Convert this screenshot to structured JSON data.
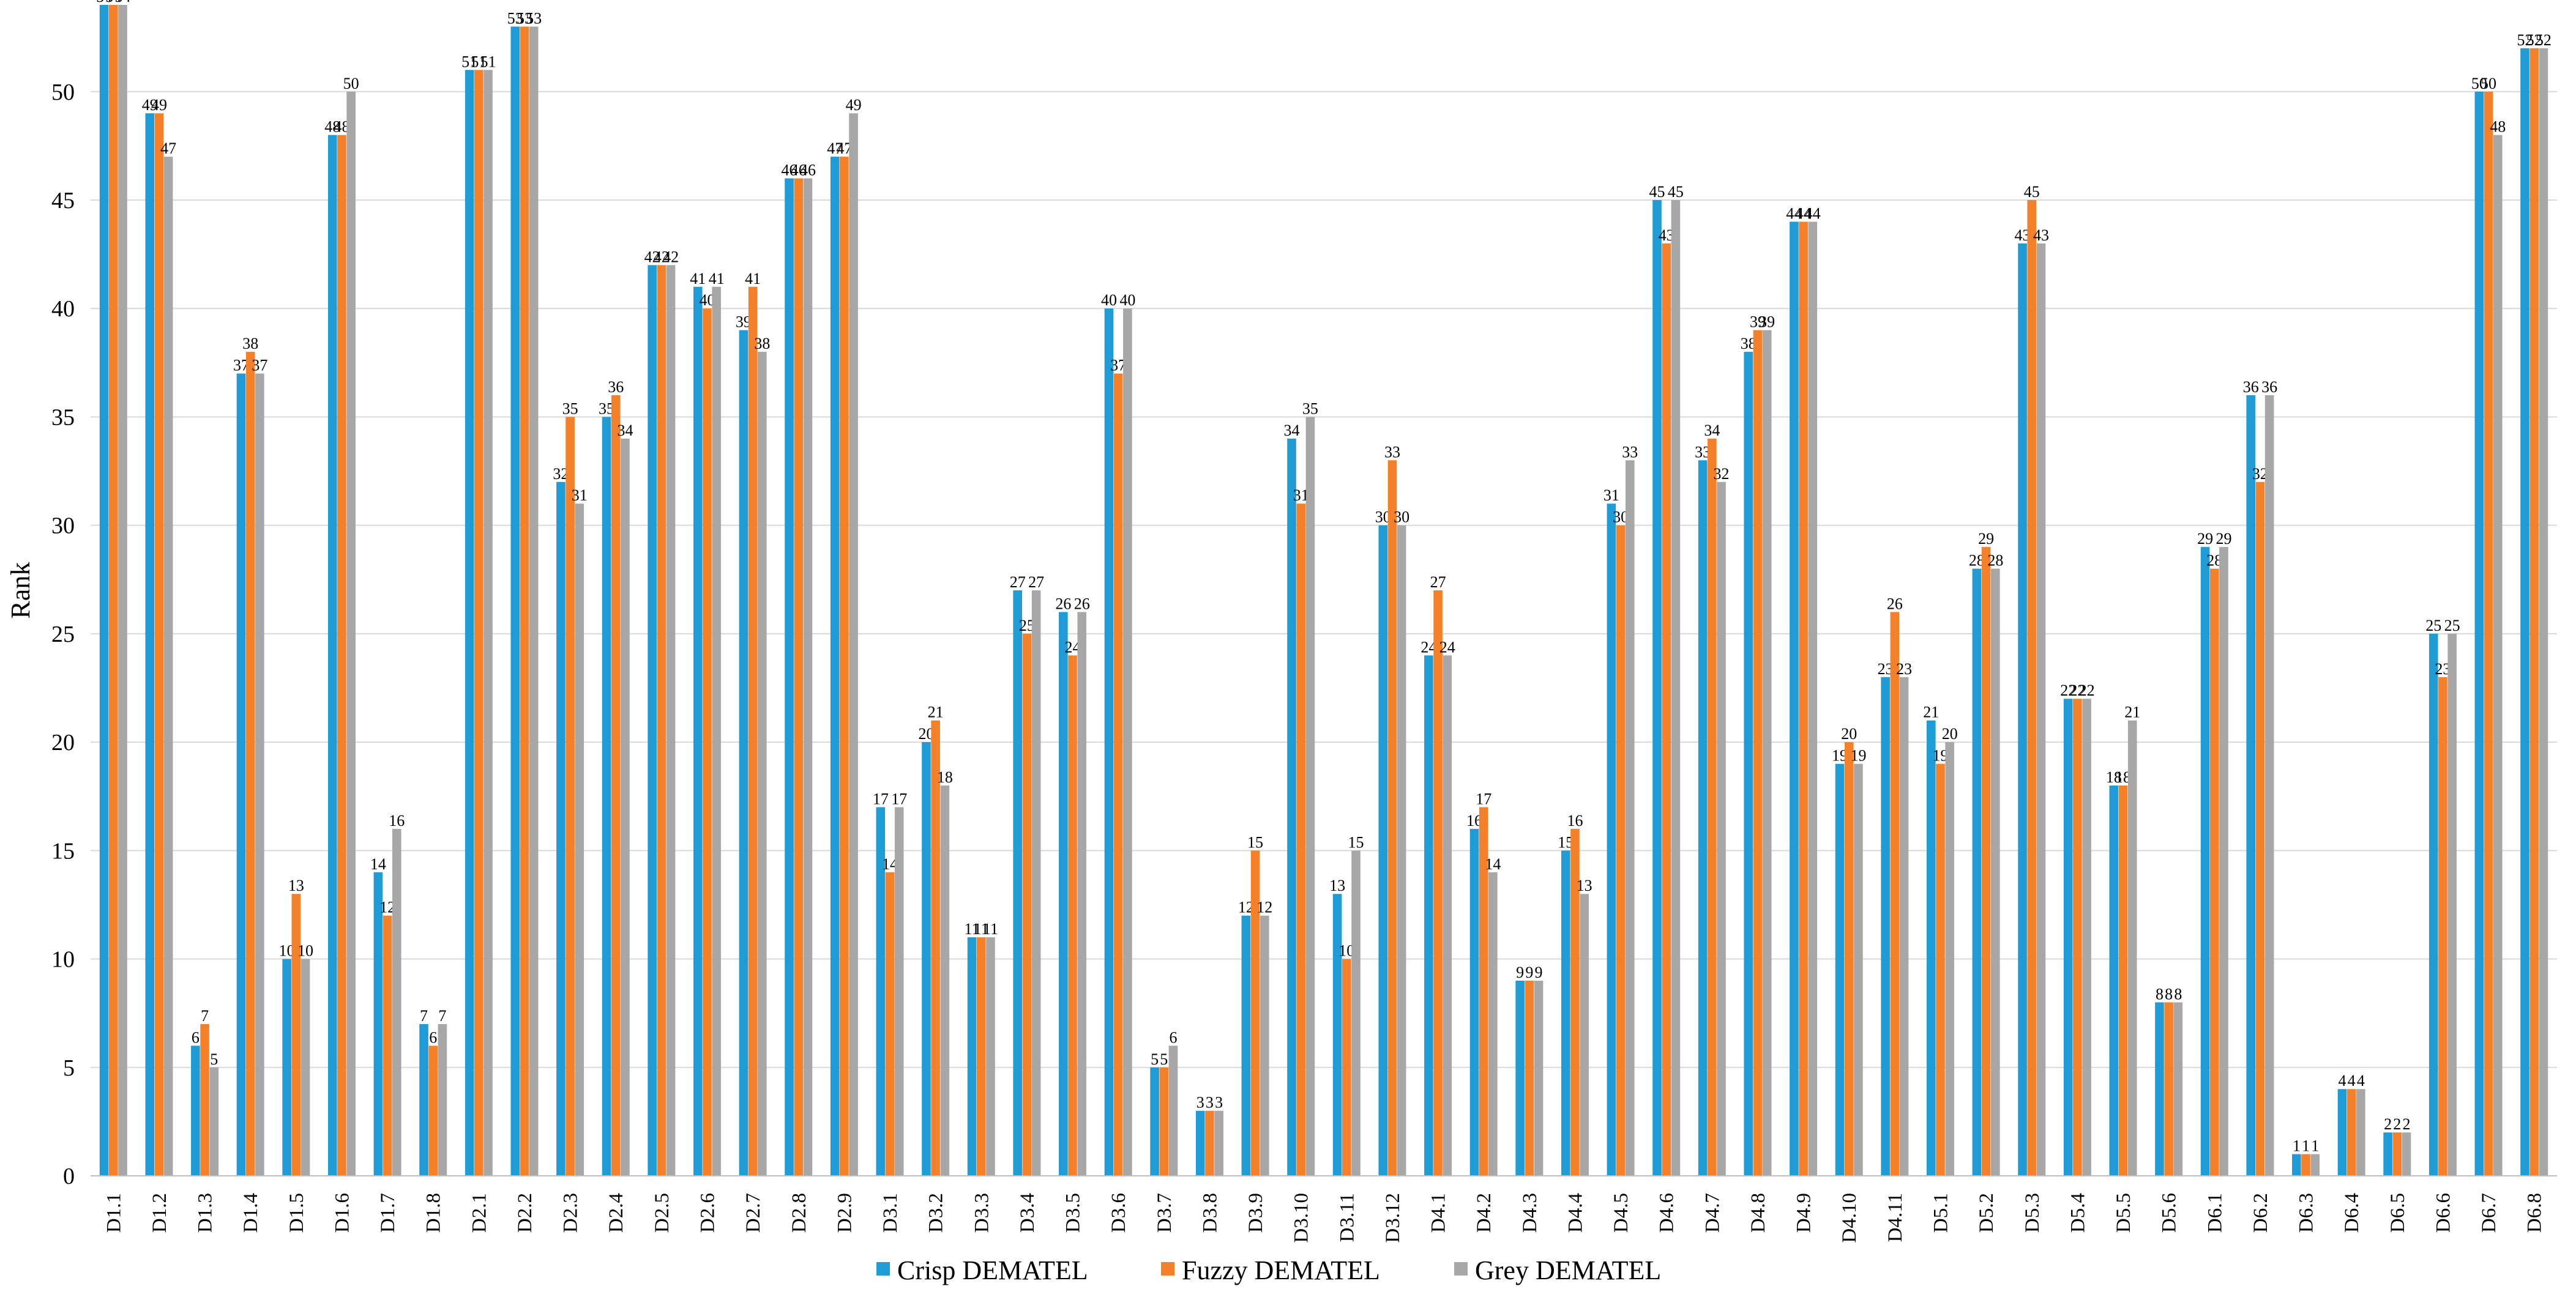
{
  "chart_data": {
    "type": "bar",
    "title": "",
    "xlabel": "",
    "ylabel": "Rank",
    "ylim": [
      0,
      54
    ],
    "yticks": [
      0,
      5,
      10,
      15,
      20,
      25,
      30,
      35,
      40,
      45,
      50
    ],
    "grid": "horizontal",
    "legend_position": "bottom-center",
    "categories": [
      "D1.1",
      "D1.2",
      "D1.3",
      "D1.4",
      "D1.5",
      "D1.6",
      "D1.7",
      "D1.8",
      "D2.1",
      "D2.2",
      "D2.3",
      "D2.4",
      "D2.5",
      "D2.6",
      "D2.7",
      "D2.8",
      "D2.9",
      "D3.1",
      "D3.2",
      "D3.3",
      "D3.4",
      "D3.5",
      "D3.6",
      "D3.7",
      "D3.8",
      "D3.9",
      "D3.10",
      "D3.11",
      "D3.12",
      "D4.1",
      "D4.2",
      "D4.3",
      "D4.4",
      "D4.5",
      "D4.6",
      "D4.7",
      "D4.8",
      "D4.9",
      "D4.10",
      "D4.11",
      "D5.1",
      "D5.2",
      "D5.3",
      "D5.4",
      "D5.5",
      "D5.6",
      "D6.1",
      "D6.2",
      "D6.3",
      "D6.4",
      "D6.5",
      "D6.6",
      "D6.7",
      "D6.8"
    ],
    "series": [
      {
        "name": "Crisp DEMATEL",
        "color": "#1f9bd6",
        "values": [
          54,
          49,
          6,
          37,
          10,
          48,
          14,
          7,
          51,
          53,
          32,
          35,
          42,
          41,
          39,
          46,
          47,
          17,
          20,
          11,
          27,
          26,
          40,
          5,
          3,
          12,
          34,
          13,
          30,
          24,
          16,
          9,
          15,
          31,
          45,
          33,
          38,
          44,
          19,
          23,
          21,
          28,
          43,
          22,
          18,
          8,
          29,
          36,
          1,
          4,
          2,
          25,
          50,
          52
        ]
      },
      {
        "name": "Fuzzy DEMATEL",
        "color": "#f4812a",
        "values": [
          54,
          49,
          7,
          38,
          13,
          48,
          12,
          6,
          51,
          53,
          35,
          36,
          42,
          40,
          41,
          46,
          47,
          14,
          21,
          11,
          25,
          24,
          37,
          5,
          3,
          15,
          31,
          10,
          33,
          27,
          17,
          9,
          16,
          30,
          43,
          34,
          39,
          44,
          20,
          26,
          19,
          29,
          45,
          22,
          18,
          8,
          28,
          32,
          1,
          4,
          2,
          23,
          50,
          52
        ]
      },
      {
        "name": "Grey DEMATEL",
        "color": "#a7a7a7",
        "values": [
          54,
          47,
          5,
          37,
          10,
          50,
          16,
          7,
          51,
          53,
          31,
          34,
          42,
          41,
          38,
          46,
          49,
          17,
          18,
          11,
          27,
          26,
          40,
          6,
          3,
          12,
          35,
          15,
          30,
          24,
          14,
          9,
          13,
          33,
          45,
          32,
          39,
          44,
          19,
          23,
          20,
          28,
          43,
          22,
          21,
          8,
          29,
          36,
          1,
          4,
          2,
          25,
          48,
          52
        ]
      }
    ]
  }
}
